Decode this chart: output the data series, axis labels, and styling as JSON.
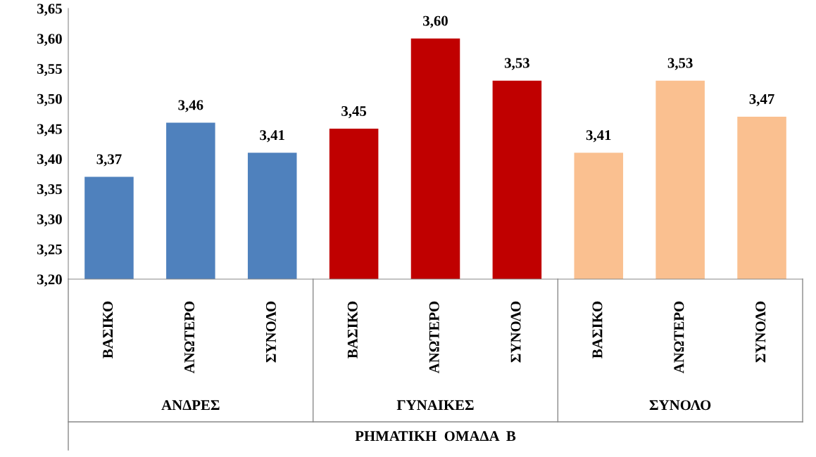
{
  "chart_data": {
    "type": "bar",
    "xlabel": "ΡΗΜΑΤΙΚΗ  ΟΜΑΔΑ  Β",
    "categories": [
      "ΒΑΣΙΚΟ",
      "ΑΝΩΤΕΡΟ",
      "ΣΥΝΟΛΟ",
      "ΒΑΣΙΚΟ",
      "ΑΝΩΤΕΡΟ",
      "ΣΥΝΟΛΟ",
      "ΒΑΣΙΚΟ",
      "ΑΝΩΤΕΡΟ",
      "ΣΥΝΟΛΟ"
    ],
    "values": [
      3.37,
      3.46,
      3.41,
      3.45,
      3.6,
      3.53,
      3.41,
      3.53,
      3.47
    ],
    "colors": [
      "#4f81bd",
      "#4f81bd",
      "#4f81bd",
      "#c00000",
      "#c00000",
      "#c00000",
      "#fac090",
      "#fac090",
      "#fac090"
    ],
    "value_labels": [
      "3,37",
      "3,46",
      "3,41",
      "3,45",
      "3,60",
      "3,53",
      "3,41",
      "3,53",
      "3,47"
    ],
    "annotations": [
      "ΑΝΔΡΕΣ",
      "ΓΥΝΑΙΚΕΣ",
      "ΣΥΝΟΛΟ"
    ],
    "ylim": [
      3.2,
      3.65
    ],
    "yticks": [
      {
        "value": 3.2,
        "label": "3,20"
      },
      {
        "value": 3.25,
        "label": "3,25"
      },
      {
        "value": 3.3,
        "label": "3,30"
      },
      {
        "value": 3.35,
        "label": "3,35"
      },
      {
        "value": 3.4,
        "label": "3,40"
      },
      {
        "value": 3.45,
        "label": "3,45"
      },
      {
        "value": 3.5,
        "label": "3,50"
      },
      {
        "value": 3.55,
        "label": "3,55"
      },
      {
        "value": 3.6,
        "label": "3,60"
      },
      {
        "value": 3.65,
        "label": "3,65"
      }
    ],
    "grid": false,
    "legend": false
  }
}
